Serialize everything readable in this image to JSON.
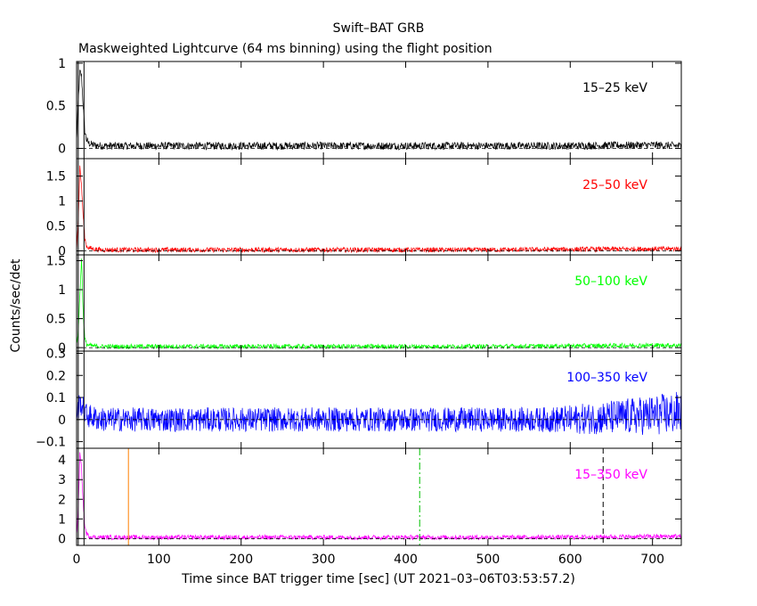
{
  "chart_data": {
    "type": "line",
    "title": "Swift–BAT GRB",
    "subtitle": "Maskweighted Lightcurve (64 ms binning) using the flight position",
    "xlabel": "Time since BAT trigger time [sec] (UT 2021–03–06T03:53:57.2)",
    "ylabel": "Counts/sec/det",
    "xlim": [
      0,
      735
    ],
    "xticks": [
      0,
      100,
      200,
      300,
      400,
      500,
      600,
      700
    ],
    "grid": false,
    "panels": [
      {
        "name": "15–25 keV",
        "color": "#000000",
        "ylim": [
          -0.12,
          1.02
        ],
        "yticks": [
          0,
          0.5,
          1
        ],
        "ytick_labels": [
          "0",
          "0.5",
          "1"
        ],
        "series": {
          "x": [
            0,
            2,
            4,
            6,
            8,
            10,
            12,
            15,
            20,
            30,
            100,
            200,
            300,
            400,
            500,
            600,
            700,
            735
          ],
          "y": [
            0.08,
            0.55,
            0.9,
            0.85,
            0.5,
            0.2,
            0.1,
            0.06,
            0.04,
            0.03,
            0.03,
            0.03,
            0.03,
            0.03,
            0.03,
            0.03,
            0.04,
            0.03
          ]
        },
        "noise": 0.045
      },
      {
        "name": "25–50 keV",
        "color": "#ff0000",
        "ylim": [
          -0.08,
          1.85
        ],
        "yticks": [
          0,
          0.5,
          1,
          1.5
        ],
        "ytick_labels": [
          "0",
          "0.5",
          "1",
          "1.5"
        ],
        "series": {
          "x": [
            0,
            2,
            4,
            6,
            8,
            10,
            12,
            15,
            20,
            30,
            100,
            200,
            300,
            400,
            500,
            600,
            700,
            735
          ],
          "y": [
            0.05,
            0.6,
            1.7,
            1.3,
            0.7,
            0.25,
            0.1,
            0.06,
            0.04,
            0.02,
            0.02,
            0.02,
            0.02,
            0.02,
            0.02,
            0.03,
            0.04,
            0.04
          ]
        },
        "noise": 0.05
      },
      {
        "name": "50–100 keV",
        "color": "#00ff00",
        "ylim": [
          -0.06,
          1.6
        ],
        "yticks": [
          0,
          0.5,
          1,
          1.5
        ],
        "ytick_labels": [
          "0",
          "0.5",
          "1",
          "1.5"
        ],
        "series": {
          "x": [
            0,
            2,
            4,
            6,
            8,
            10,
            12,
            15,
            20,
            30,
            100,
            200,
            300,
            400,
            500,
            600,
            700,
            735
          ],
          "y": [
            0.04,
            0.3,
            0.9,
            1.55,
            0.6,
            0.15,
            0.06,
            0.04,
            0.03,
            0.02,
            0.02,
            0.02,
            0.02,
            0.02,
            0.02,
            0.03,
            0.04,
            0.04
          ]
        },
        "noise": 0.04
      },
      {
        "name": "100–350 keV",
        "color": "#0000ff",
        "ylim": [
          -0.13,
          0.31
        ],
        "yticks": [
          -0.1,
          0,
          0.1,
          0.2,
          0.3
        ],
        "ytick_labels": [
          "−0.1",
          "0",
          "0.1",
          "0.2",
          "0.3"
        ],
        "series": {
          "x": [
            0,
            4,
            8,
            12,
            20,
            30,
            100,
            200,
            300,
            400,
            500,
            600,
            650,
            700,
            735
          ],
          "y": [
            0.02,
            0.08,
            0.05,
            0.02,
            0.01,
            0.0,
            0.0,
            0.0,
            0.0,
            0.0,
            0.0,
            0.0,
            0.01,
            0.02,
            0.03
          ]
        },
        "noise": 0.055,
        "noise_growth": 0.045
      },
      {
        "name": "15–350 keV",
        "color": "#ff00ff",
        "ylim": [
          -0.35,
          4.6
        ],
        "yticks": [
          0,
          1,
          2,
          3,
          4
        ],
        "ytick_labels": [
          "0",
          "1",
          "2",
          "3",
          "4"
        ],
        "series": {
          "x": [
            0,
            2,
            4,
            6,
            8,
            10,
            12,
            15,
            20,
            30,
            100,
            200,
            300,
            400,
            500,
            600,
            700,
            735
          ],
          "y": [
            0.1,
            1.5,
            4.3,
            3.6,
            1.8,
            0.6,
            0.25,
            0.12,
            0.08,
            0.06,
            0.06,
            0.06,
            0.06,
            0.06,
            0.06,
            0.07,
            0.1,
            0.12
          ]
        },
        "noise": 0.12
      }
    ],
    "markers": [
      {
        "x": 2,
        "color": "#000000",
        "style": "solid",
        "panels": "all",
        "top_panel_only": false
      },
      {
        "x": 9,
        "color": "#000000",
        "style": "solid",
        "panels": "all",
        "top_panel_only": false
      },
      {
        "x": 63,
        "color": "#ff8000",
        "style": "solid",
        "panels": "bottom"
      },
      {
        "x": 417,
        "color": "#00c000",
        "style": "dashdot",
        "panels": "bottom"
      },
      {
        "x": 640,
        "color": "#000000",
        "style": "dashed",
        "panels": "bottom"
      }
    ]
  }
}
